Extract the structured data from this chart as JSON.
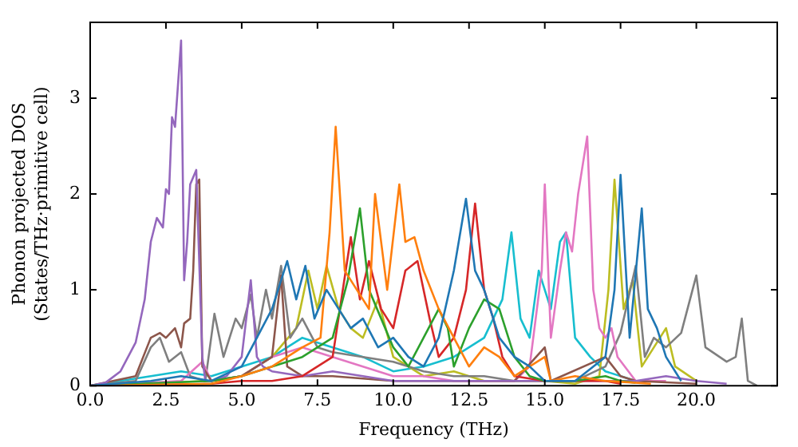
{
  "chart_data": {
    "type": "line",
    "xlabel": "Frequency (THz)",
    "ylabel": "Phonon projected DOS\n(States/THz·primitive cell)",
    "xlim": [
      0,
      22.67
    ],
    "ylim": [
      0,
      3.79
    ],
    "xticks": [
      {
        "value": 0,
        "label": "0.0"
      },
      {
        "value": 2.5,
        "label": "2.5"
      },
      {
        "value": 5,
        "label": "5.0"
      },
      {
        "value": 7.5,
        "label": "7.5"
      },
      {
        "value": 10,
        "label": "10.0"
      },
      {
        "value": 12.5,
        "label": "12.5"
      },
      {
        "value": 15,
        "label": "15.0"
      },
      {
        "value": 17.5,
        "label": "17.5"
      },
      {
        "value": 20,
        "label": "20.0"
      }
    ],
    "yticks": [
      0,
      1,
      2,
      3
    ],
    "grid": false,
    "legend": false,
    "marker": "none",
    "line_style": "solid",
    "series": [
      {
        "color": "#1f77b4",
        "x": [
          0,
          2,
          3,
          4,
          5,
          6,
          6.5,
          6.8,
          7.1,
          7.4,
          7.8,
          8.2,
          8.6,
          9,
          9.5,
          10,
          10.5,
          11,
          11.5,
          12,
          12.4,
          12.7,
          13,
          13.5,
          14,
          14.5,
          15,
          16,
          17,
          17.3,
          17.5,
          17.8,
          18.2,
          18.4,
          18.7,
          19,
          19.5
        ],
        "values": [
          0,
          0.05,
          0.1,
          0.05,
          0.2,
          0.8,
          1.3,
          0.9,
          1.25,
          0.7,
          1.0,
          0.8,
          0.6,
          0.7,
          0.4,
          0.5,
          0.3,
          0.2,
          0.5,
          1.2,
          1.95,
          1.2,
          1.0,
          0.5,
          0.3,
          0.2,
          0.05,
          0.05,
          0.3,
          1.0,
          2.2,
          0.5,
          1.85,
          0.8,
          0.6,
          0.3,
          0.05
        ]
      },
      {
        "color": "#ff7f0e",
        "x": [
          0,
          4,
          5,
          6,
          7,
          7.6,
          7.9,
          8.1,
          8.4,
          8.8,
          9.2,
          9.4,
          9.8,
          10.2,
          10.4,
          10.7,
          11,
          11.5,
          12,
          12.5,
          13,
          13.5,
          14,
          15,
          15.2,
          16,
          17,
          18.5
        ],
        "values": [
          0,
          0.02,
          0.1,
          0.2,
          0.4,
          0.5,
          1.6,
          2.7,
          1.2,
          1.0,
          0.8,
          2.0,
          1.0,
          2.1,
          1.5,
          1.55,
          1.2,
          0.8,
          0.5,
          0.2,
          0.4,
          0.3,
          0.1,
          0.3,
          0.05,
          0.1,
          0.05,
          0.02
        ]
      },
      {
        "color": "#2ca02c",
        "x": [
          0,
          4,
          5,
          6,
          7,
          8,
          8.5,
          8.9,
          9.2,
          9.6,
          10,
          10.5,
          11,
          11.5,
          11.8,
          12,
          12.5,
          13,
          13.5,
          14,
          14.5,
          15,
          16,
          17,
          17.5,
          18
        ],
        "values": [
          0,
          0.05,
          0.1,
          0.2,
          0.3,
          0.5,
          1.1,
          1.85,
          1.0,
          0.7,
          0.4,
          0.2,
          0.5,
          0.8,
          0.6,
          0.2,
          0.6,
          0.9,
          0.8,
          0.3,
          0.1,
          0.05,
          0.05,
          0.1,
          0.05,
          0.03
        ]
      },
      {
        "color": "#d62728",
        "x": [
          0,
          4,
          5,
          6,
          7,
          8,
          8.6,
          8.9,
          9.2,
          9.6,
          10,
          10.4,
          10.8,
          11.2,
          11.5,
          12,
          12.4,
          12.7,
          13,
          13.3,
          13.6,
          14,
          15,
          16,
          17,
          17.5
        ],
        "values": [
          0,
          0.02,
          0.05,
          0.05,
          0.1,
          0.3,
          1.55,
          0.9,
          1.3,
          0.8,
          0.6,
          1.2,
          1.3,
          0.7,
          0.3,
          0.5,
          1.0,
          1.9,
          1.0,
          0.7,
          0.3,
          0.1,
          0.05,
          0.05,
          0.05,
          0.02
        ]
      },
      {
        "color": "#9467bd",
        "x": [
          0,
          0.5,
          1,
          1.5,
          1.8,
          2,
          2.2,
          2.4,
          2.5,
          2.6,
          2.7,
          2.8,
          3,
          3.1,
          3.2,
          3.3,
          3.5,
          3.7,
          3.8,
          4,
          4.5,
          5,
          5.3,
          5.5,
          5.7,
          6,
          7,
          8,
          9,
          10,
          12,
          14,
          16,
          18,
          19,
          20,
          21
        ],
        "values": [
          0,
          0.03,
          0.15,
          0.45,
          0.9,
          1.5,
          1.75,
          1.65,
          2.05,
          2.0,
          2.8,
          2.7,
          3.6,
          1.1,
          1.5,
          2.1,
          2.25,
          0.3,
          0.05,
          0.05,
          0.1,
          0.3,
          1.1,
          0.3,
          0.2,
          0.15,
          0.1,
          0.15,
          0.1,
          0.05,
          0.05,
          0.05,
          0.05,
          0.05,
          0.1,
          0.05,
          0.02
        ]
      },
      {
        "color": "#8c564b",
        "x": [
          0,
          1.5,
          2,
          2.3,
          2.5,
          2.8,
          3,
          3.1,
          3.3,
          3.4,
          3.5,
          3.6,
          3.7,
          4,
          5,
          6,
          6.3,
          6.5,
          7,
          8,
          10,
          12,
          14,
          15,
          15.2,
          17,
          17.5,
          18,
          20
        ],
        "values": [
          0,
          0.1,
          0.5,
          0.55,
          0.5,
          0.6,
          0.4,
          0.65,
          0.7,
          1.2,
          2.1,
          2.15,
          0.2,
          0.05,
          0.1,
          0.3,
          1.15,
          0.2,
          0.1,
          0.1,
          0.05,
          0.05,
          0.05,
          0.4,
          0.05,
          0.3,
          0.1,
          0.05,
          0.02
        ]
      },
      {
        "color": "#e377c2",
        "x": [
          0,
          3,
          3.7,
          4,
          5,
          6,
          7,
          8,
          9,
          10,
          11,
          12,
          13,
          14,
          14.5,
          14.9,
          15,
          15.2,
          15.5,
          15.7,
          15.9,
          16.1,
          16.4,
          16.6,
          16.8,
          17,
          17.2,
          17.4,
          18,
          19
        ],
        "values": [
          0,
          0.05,
          0.25,
          0.05,
          0.1,
          0.3,
          0.4,
          0.3,
          0.2,
          0.1,
          0.1,
          0.05,
          0.05,
          0.05,
          0.2,
          1.2,
          2.1,
          0.5,
          1.2,
          1.6,
          1.4,
          2.0,
          2.6,
          1.0,
          0.6,
          0.5,
          0.6,
          0.3,
          0.05,
          0.05
        ]
      },
      {
        "color": "#7f7f7f",
        "x": [
          0,
          1.5,
          2,
          2.3,
          2.6,
          3,
          3.3,
          3.8,
          4.1,
          4.4,
          4.8,
          5,
          5.3,
          5.5,
          5.8,
          6,
          6.3,
          6.6,
          7,
          7.5,
          8,
          9,
          10,
          11,
          12,
          13,
          14,
          16,
          17,
          17.5,
          18,
          18.3,
          18.6,
          19,
          19.5,
          20,
          20.3,
          21,
          21.3,
          21.5,
          21.7,
          22
        ],
        "values": [
          0,
          0.05,
          0.4,
          0.5,
          0.25,
          0.35,
          0.1,
          0.05,
          0.75,
          0.3,
          0.7,
          0.6,
          0.95,
          0.5,
          1.0,
          0.7,
          1.25,
          0.5,
          0.7,
          0.4,
          0.35,
          0.3,
          0.25,
          0.15,
          0.1,
          0.1,
          0.05,
          0.05,
          0.2,
          0.55,
          1.25,
          0.3,
          0.5,
          0.4,
          0.55,
          1.15,
          0.4,
          0.25,
          0.3,
          0.7,
          0.05,
          0
        ]
      },
      {
        "color": "#bcbd22",
        "x": [
          0,
          4,
          5,
          6,
          6.8,
          7.2,
          7.5,
          7.8,
          8.2,
          8.6,
          9,
          9.5,
          10,
          10.5,
          11,
          12,
          13,
          14,
          15,
          16,
          16.8,
          17.1,
          17.3,
          17.6,
          17.9,
          18.2,
          18.6,
          19,
          19.3,
          20
        ],
        "values": [
          0,
          0.05,
          0.1,
          0.3,
          0.6,
          1.2,
          0.8,
          1.25,
          0.8,
          0.6,
          0.5,
          0.9,
          0.3,
          0.2,
          0.1,
          0.15,
          0.05,
          0.05,
          0.05,
          0.02,
          0.1,
          1.0,
          2.15,
          0.8,
          1.1,
          0.2,
          0.4,
          0.6,
          0.2,
          0.05
        ]
      },
      {
        "color": "#17becf",
        "x": [
          0,
          2,
          3,
          4,
          5,
          6,
          7,
          8,
          9,
          10,
          11,
          12,
          13,
          13.6,
          13.9,
          14.2,
          14.5,
          14.8,
          15.2,
          15.5,
          15.7,
          16,
          16.5,
          17,
          18
        ],
        "values": [
          0,
          0.1,
          0.15,
          0.1,
          0.2,
          0.3,
          0.5,
          0.4,
          0.3,
          0.15,
          0.2,
          0.3,
          0.5,
          0.9,
          1.6,
          0.7,
          0.5,
          1.2,
          0.8,
          1.5,
          1.6,
          0.5,
          0.3,
          0.15,
          0.05
        ]
      }
    ]
  }
}
